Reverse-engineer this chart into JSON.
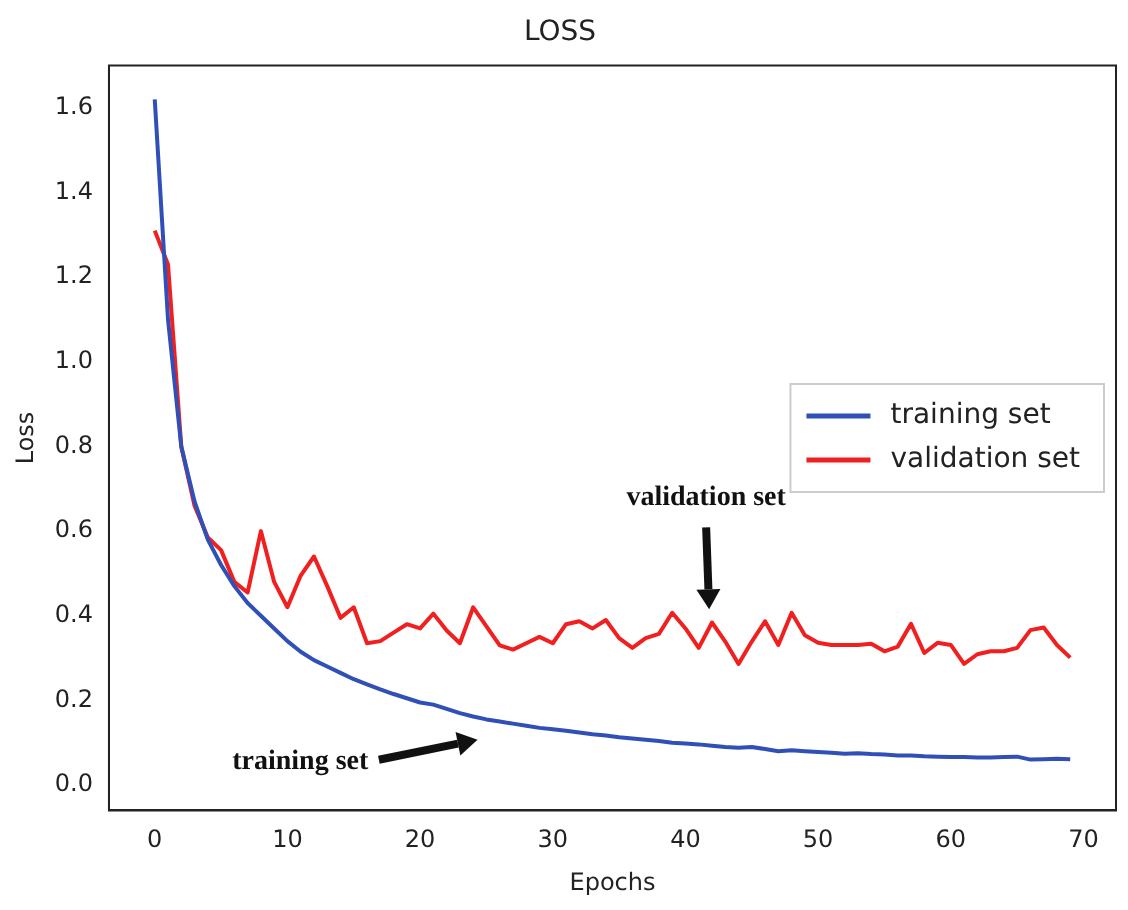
{
  "chart_data": {
    "type": "line",
    "title": "LOSS",
    "xlabel": "Epochs",
    "ylabel": "Loss",
    "x": [
      0,
      1,
      2,
      3,
      4,
      5,
      6,
      7,
      8,
      9,
      10,
      11,
      12,
      13,
      14,
      15,
      16,
      17,
      18,
      19,
      20,
      21,
      22,
      23,
      24,
      25,
      26,
      27,
      28,
      29,
      30,
      31,
      32,
      33,
      34,
      35,
      36,
      37,
      38,
      39,
      40,
      41,
      42,
      43,
      44,
      45,
      46,
      47,
      48,
      49,
      50,
      51,
      52,
      53,
      54,
      55,
      56,
      57,
      58,
      59,
      60,
      61,
      62,
      63,
      64,
      65,
      66,
      67,
      68,
      69
    ],
    "series": [
      {
        "name": "training set",
        "color": "#3050b8",
        "values": [
          1.62,
          1.1,
          0.8,
          0.67,
          0.58,
          0.52,
          0.47,
          0.43,
          0.4,
          0.37,
          0.34,
          0.315,
          0.295,
          0.28,
          0.265,
          0.25,
          0.238,
          0.226,
          0.215,
          0.205,
          0.195,
          0.19,
          0.18,
          0.17,
          0.162,
          0.155,
          0.15,
          0.145,
          0.14,
          0.135,
          0.132,
          0.128,
          0.124,
          0.12,
          0.117,
          0.113,
          0.11,
          0.107,
          0.104,
          0.1,
          0.098,
          0.096,
          0.093,
          0.09,
          0.088,
          0.09,
          0.085,
          0.08,
          0.082,
          0.08,
          0.078,
          0.076,
          0.074,
          0.075,
          0.073,
          0.072,
          0.07,
          0.07,
          0.068,
          0.067,
          0.066,
          0.066,
          0.065,
          0.065,
          0.066,
          0.067,
          0.06,
          0.061,
          0.062,
          0.061
        ]
      },
      {
        "name": "validation set",
        "color": "#f02020",
        "values": [
          1.31,
          1.23,
          0.8,
          0.66,
          0.585,
          0.555,
          0.48,
          0.455,
          0.6,
          0.48,
          0.42,
          0.495,
          0.54,
          0.47,
          0.395,
          0.42,
          0.335,
          0.34,
          0.36,
          0.38,
          0.37,
          0.405,
          0.365,
          0.335,
          0.42,
          0.375,
          0.33,
          0.32,
          0.335,
          0.35,
          0.335,
          0.38,
          0.387,
          0.37,
          0.39,
          0.347,
          0.324,
          0.347,
          0.357,
          0.407,
          0.37,
          0.324,
          0.384,
          0.339,
          0.286,
          0.339,
          0.387,
          0.331,
          0.407,
          0.354,
          0.336,
          0.331,
          0.331,
          0.331,
          0.334,
          0.316,
          0.327,
          0.381,
          0.312,
          0.336,
          0.331,
          0.286,
          0.309,
          0.316,
          0.316,
          0.324,
          0.366,
          0.372,
          0.331,
          0.301
        ]
      }
    ],
    "xlim": [
      -3.45,
      72.45
    ],
    "xticks": [
      0,
      10,
      20,
      30,
      40,
      50,
      60,
      70
    ],
    "ylim": [
      -0.06,
      1.7
    ],
    "yticks": [
      {
        "value": 0,
        "label": "0.0"
      },
      0.2,
      0.4,
      0.6,
      0.8,
      {
        "value": 1,
        "label": "1.0"
      },
      1.2,
      1.4,
      1.6
    ],
    "legend": "right",
    "grid": false,
    "marker": "none",
    "line_style": "solid",
    "annotations": [
      "validation set",
      "training set"
    ]
  }
}
